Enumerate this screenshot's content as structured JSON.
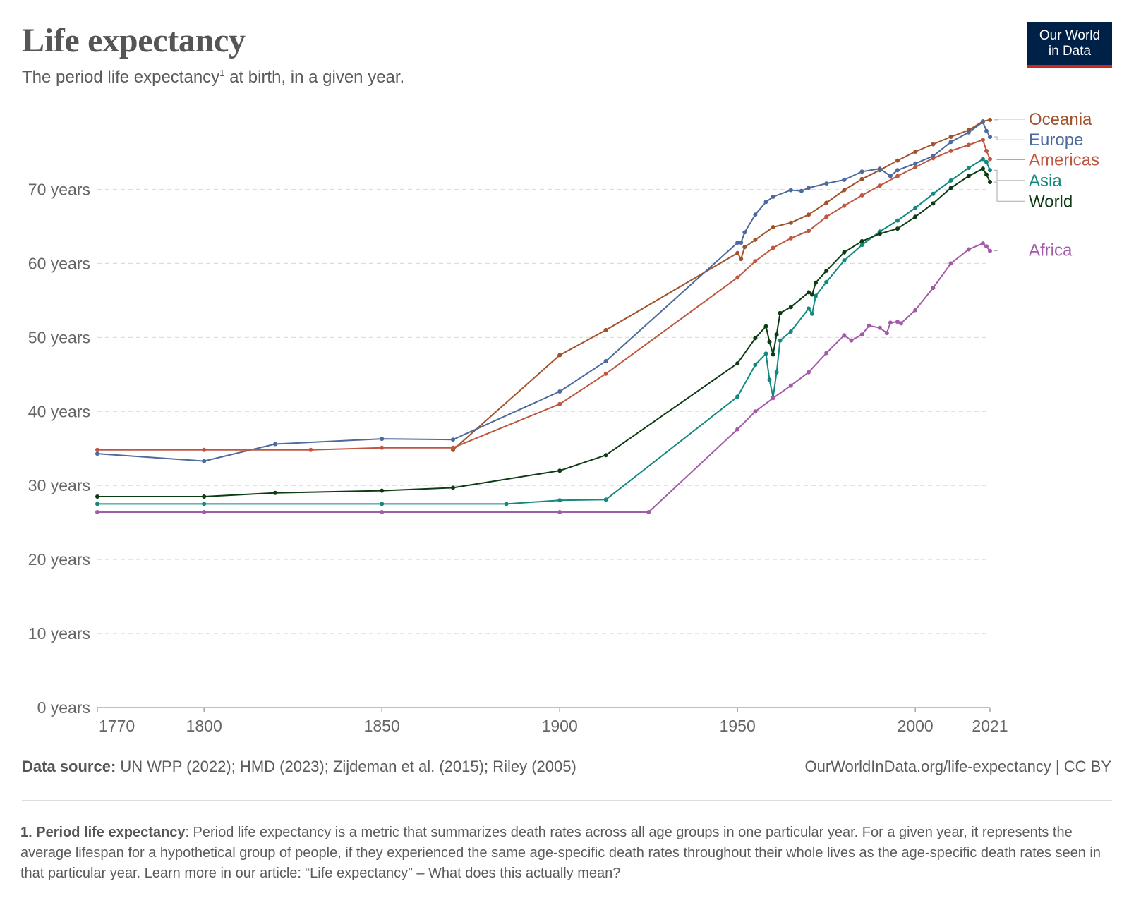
{
  "header": {
    "title": "Life expectancy",
    "subtitle": "The period life expectancy",
    "subtitle_sup": "1",
    "subtitle_rest": " at birth, in a given year.",
    "logo_line1": "Our World",
    "logo_line2": "in Data"
  },
  "footer": {
    "source_label": "Data source:",
    "source_text": " UN WPP (2022); HMD (2023); Zijdeman et al. (2015); Riley (2005)",
    "url": "OurWorldInData.org/life-expectancy | CC BY",
    "note_label": "1. Period life expectancy",
    "note_text": ": Period life expectancy is a metric that summarizes death rates across all age groups in one particular year. For a given year, it represents the average lifespan for a hypothetical group of people, if they experienced the same age-specific death rates throughout their whole lives as the age-specific death rates seen in that particular year. Learn more in our article: “Life expectancy” – What does this actually mean?"
  },
  "chart_data": {
    "type": "line",
    "xlim": [
      1770,
      2021
    ],
    "ylim": [
      0,
      80
    ],
    "x_ticks": [
      1770,
      1800,
      1850,
      1900,
      1950,
      2000,
      2021
    ],
    "x_tick_labels": [
      "1770",
      "1800",
      "1850",
      "1900",
      "1950",
      "2000",
      "2021"
    ],
    "y_ticks": [
      0,
      10,
      20,
      30,
      40,
      50,
      60,
      70
    ],
    "y_tick_labels": [
      "0 years",
      "10 years",
      "20 years",
      "30 years",
      "40 years",
      "50 years",
      "60 years",
      "70 years"
    ],
    "grid": true,
    "legend": "right-inline-labels",
    "series": [
      {
        "name": "Oceania",
        "color": "#a2522b",
        "label_y": 79.5,
        "points": [
          [
            1870,
            34.8
          ],
          [
            1900,
            47.6
          ],
          [
            1913,
            51.0
          ],
          [
            1950,
            61.4
          ],
          [
            1951,
            60.6
          ],
          [
            1952,
            62.2
          ],
          [
            1955,
            63.2
          ],
          [
            1960,
            64.9
          ],
          [
            1965,
            65.5
          ],
          [
            1970,
            66.6
          ],
          [
            1975,
            68.2
          ],
          [
            1980,
            69.9
          ],
          [
            1985,
            71.4
          ],
          [
            1990,
            72.6
          ],
          [
            1995,
            73.9
          ],
          [
            2000,
            75.1
          ],
          [
            2005,
            76.1
          ],
          [
            2010,
            77.1
          ],
          [
            2015,
            78.0
          ],
          [
            2019,
            79.2
          ],
          [
            2021,
            79.4
          ]
        ]
      },
      {
        "name": "Europe",
        "color": "#4c6a9c",
        "label_y": 76.7,
        "points": [
          [
            1770,
            34.3
          ],
          [
            1800,
            33.3
          ],
          [
            1820,
            35.6
          ],
          [
            1850,
            36.3
          ],
          [
            1870,
            36.2
          ],
          [
            1900,
            42.7
          ],
          [
            1913,
            46.8
          ],
          [
            1950,
            62.8
          ],
          [
            1951,
            62.8
          ],
          [
            1952,
            64.2
          ],
          [
            1955,
            66.6
          ],
          [
            1958,
            68.3
          ],
          [
            1960,
            69.0
          ],
          [
            1965,
            69.9
          ],
          [
            1968,
            69.8
          ],
          [
            1970,
            70.2
          ],
          [
            1975,
            70.8
          ],
          [
            1980,
            71.3
          ],
          [
            1985,
            72.4
          ],
          [
            1990,
            72.8
          ],
          [
            1993,
            71.8
          ],
          [
            1995,
            72.6
          ],
          [
            2000,
            73.5
          ],
          [
            2005,
            74.5
          ],
          [
            2010,
            76.4
          ],
          [
            2015,
            77.7
          ],
          [
            2019,
            79.1
          ],
          [
            2020,
            77.9
          ],
          [
            2021,
            77.1
          ]
        ]
      },
      {
        "name": "Americas",
        "color": "#c05640",
        "label_y": 74.0,
        "points": [
          [
            1770,
            34.8
          ],
          [
            1800,
            34.8
          ],
          [
            1830,
            34.8
          ],
          [
            1850,
            35.1
          ],
          [
            1870,
            35.1
          ],
          [
            1900,
            41.0
          ],
          [
            1913,
            45.1
          ],
          [
            1950,
            58.1
          ],
          [
            1955,
            60.3
          ],
          [
            1960,
            62.1
          ],
          [
            1965,
            63.4
          ],
          [
            1970,
            64.4
          ],
          [
            1975,
            66.3
          ],
          [
            1980,
            67.8
          ],
          [
            1985,
            69.2
          ],
          [
            1990,
            70.5
          ],
          [
            1995,
            71.8
          ],
          [
            2000,
            73.0
          ],
          [
            2005,
            74.2
          ],
          [
            2010,
            75.2
          ],
          [
            2015,
            76.0
          ],
          [
            2019,
            76.7
          ],
          [
            2020,
            75.2
          ],
          [
            2021,
            74.1
          ]
        ]
      },
      {
        "name": "Asia",
        "color": "#12887f",
        "label_y": 71.2,
        "points": [
          [
            1770,
            27.5
          ],
          [
            1800,
            27.5
          ],
          [
            1850,
            27.5
          ],
          [
            1885,
            27.5
          ],
          [
            1900,
            28.0
          ],
          [
            1913,
            28.1
          ],
          [
            1950,
            42.0
          ],
          [
            1955,
            46.3
          ],
          [
            1958,
            47.8
          ],
          [
            1959,
            44.3
          ],
          [
            1960,
            41.9
          ],
          [
            1961,
            45.3
          ],
          [
            1962,
            49.6
          ],
          [
            1965,
            50.8
          ],
          [
            1970,
            53.9
          ],
          [
            1971,
            53.2
          ],
          [
            1972,
            55.6
          ],
          [
            1975,
            57.5
          ],
          [
            1980,
            60.4
          ],
          [
            1985,
            62.5
          ],
          [
            1990,
            64.3
          ],
          [
            1995,
            65.8
          ],
          [
            2000,
            67.5
          ],
          [
            2005,
            69.4
          ],
          [
            2010,
            71.2
          ],
          [
            2015,
            72.9
          ],
          [
            2019,
            74.1
          ],
          [
            2020,
            73.7
          ],
          [
            2021,
            72.6
          ]
        ]
      },
      {
        "name": "World",
        "color": "#0d3b13",
        "label_y": 68.4,
        "points": [
          [
            1770,
            28.5
          ],
          [
            1800,
            28.5
          ],
          [
            1820,
            29.0
          ],
          [
            1850,
            29.3
          ],
          [
            1870,
            29.7
          ],
          [
            1900,
            32.0
          ],
          [
            1913,
            34.1
          ],
          [
            1950,
            46.5
          ],
          [
            1955,
            49.9
          ],
          [
            1958,
            51.5
          ],
          [
            1959,
            49.4
          ],
          [
            1960,
            47.7
          ],
          [
            1961,
            50.4
          ],
          [
            1962,
            53.3
          ],
          [
            1965,
            54.1
          ],
          [
            1970,
            56.1
          ],
          [
            1971,
            55.8
          ],
          [
            1972,
            57.4
          ],
          [
            1975,
            59.0
          ],
          [
            1980,
            61.5
          ],
          [
            1985,
            63.0
          ],
          [
            1990,
            64.0
          ],
          [
            1995,
            64.7
          ],
          [
            2000,
            66.3
          ],
          [
            2005,
            68.1
          ],
          [
            2010,
            70.2
          ],
          [
            2015,
            71.8
          ],
          [
            2019,
            72.8
          ],
          [
            2020,
            72.0
          ],
          [
            2021,
            71.0
          ]
        ]
      },
      {
        "name": "Africa",
        "color": "#a25ba8",
        "label_y": 61.8,
        "points": [
          [
            1770,
            26.4
          ],
          [
            1800,
            26.4
          ],
          [
            1850,
            26.4
          ],
          [
            1900,
            26.4
          ],
          [
            1925,
            26.4
          ],
          [
            1950,
            37.6
          ],
          [
            1955,
            40.0
          ],
          [
            1960,
            41.8
          ],
          [
            1965,
            43.5
          ],
          [
            1970,
            45.3
          ],
          [
            1975,
            47.9
          ],
          [
            1980,
            50.3
          ],
          [
            1982,
            49.6
          ],
          [
            1985,
            50.4
          ],
          [
            1987,
            51.6
          ],
          [
            1990,
            51.3
          ],
          [
            1992,
            50.6
          ],
          [
            1993,
            52.0
          ],
          [
            1995,
            52.1
          ],
          [
            1996,
            51.9
          ],
          [
            2000,
            53.7
          ],
          [
            2005,
            56.7
          ],
          [
            2010,
            60.0
          ],
          [
            2015,
            61.9
          ],
          [
            2019,
            62.7
          ],
          [
            2020,
            62.3
          ],
          [
            2021,
            61.7
          ]
        ]
      }
    ]
  }
}
